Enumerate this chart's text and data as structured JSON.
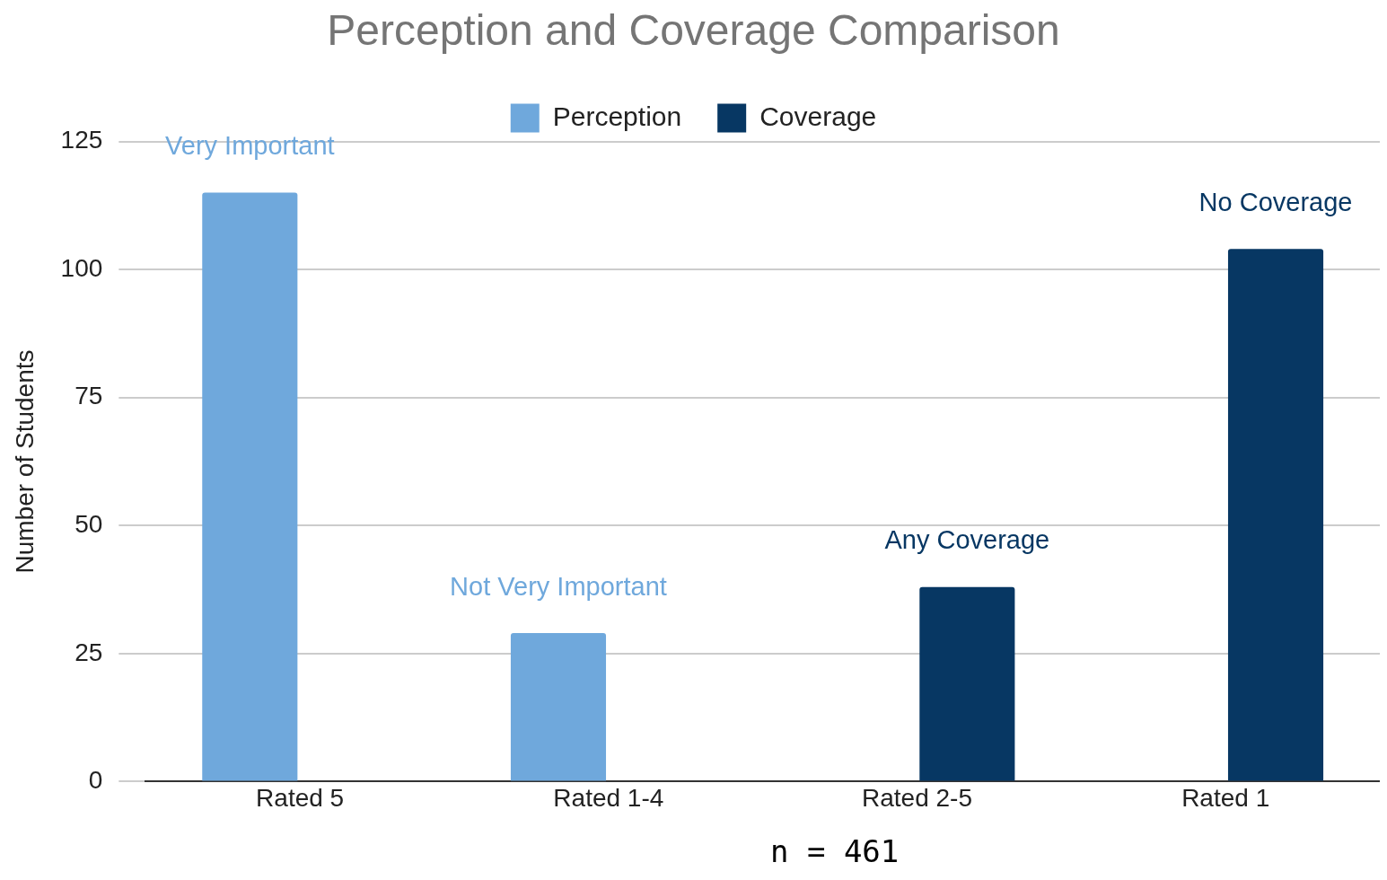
{
  "chart_data": {
    "type": "bar",
    "title": "Perception and Coverage Comparison",
    "ylabel": "Number of Students",
    "categories": [
      "Rated 5",
      "Rated 1-4",
      "Rated 2-5",
      "Rated 1"
    ],
    "series": [
      {
        "name": "Perception",
        "color": "#6fa8dc",
        "values": [
          115,
          29,
          null,
          null
        ]
      },
      {
        "name": "Coverage",
        "color": "#073763",
        "values": [
          null,
          null,
          38,
          104
        ]
      }
    ],
    "ylim": [
      0,
      125
    ],
    "yticks": [
      0,
      25,
      50,
      75,
      100,
      125
    ],
    "grid": "y",
    "legend": "top",
    "annotations": [
      {
        "text": "Very Important",
        "x": "Rated 5",
        "y": 115
      },
      {
        "text": "Not Very Important",
        "x": "Rated 1-4",
        "y": 29
      },
      {
        "text": "Any Coverage",
        "x": "Rated 2-5",
        "y": 38
      },
      {
        "text": "No Coverage",
        "x": "Rated 1",
        "y": 104
      },
      "n = 461"
    ]
  }
}
